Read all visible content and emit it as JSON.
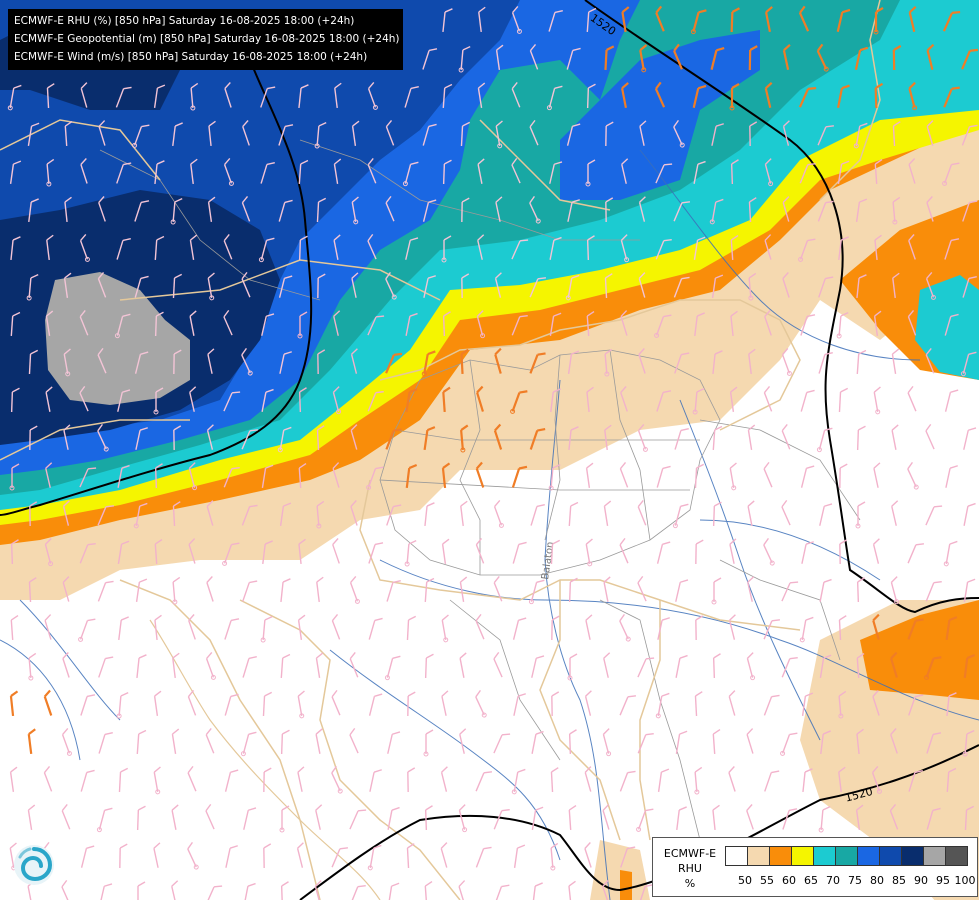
{
  "header": {
    "layers": [
      "ECMWF-E RHU (%) [850 hPa] Saturday 16-08-2025 18:00 (+24h)",
      "ECMWF-E Geopotential (m) [850 hPa] Saturday 16-08-2025 18:00 (+24h)",
      "ECMWF-E Wind (m/s) [850 hPa] Saturday 16-08-2025 18:00 (+24h)"
    ]
  },
  "map": {
    "contour_labels": [
      "1520",
      "1520"
    ],
    "place_labels": [
      "Balaton"
    ],
    "colors": {
      "rhu_50": "#ffffff",
      "rhu_55": "#f5d9b0",
      "rhu_60": "#f98d0a",
      "rhu_65": "#f5f500",
      "rhu_70": "#1ccbd1",
      "rhu_75": "#18a8a4",
      "rhu_80": "#1a67e3",
      "rhu_85": "#0f4aad",
      "rhu_90": "#092d6d",
      "rhu_95": "#a6a6a6",
      "rhu_100": "#555555",
      "country_border": "#e4c89a",
      "admin_border": "#9a9a9a",
      "river": "#3c6fb8",
      "geopotential_contour": "#000000",
      "wind_barb_light": "#f2b2cb",
      "wind_barb_strong": "#f07d26"
    }
  },
  "legend": {
    "model": "ECMWF-E",
    "variable": "RHU",
    "unit": "%",
    "levels": [
      "50",
      "55",
      "60",
      "65",
      "70",
      "75",
      "80",
      "85",
      "90",
      "95",
      "100"
    ],
    "colors": [
      "#ffffff",
      "#f5d9b0",
      "#f98d0a",
      "#f5f500",
      "#1ccbd1",
      "#18a8a4",
      "#1a67e3",
      "#0f4aad",
      "#092d6d",
      "#a6a6a6",
      "#555555"
    ]
  },
  "logo": {
    "icon": "swirl-logo-icon"
  }
}
